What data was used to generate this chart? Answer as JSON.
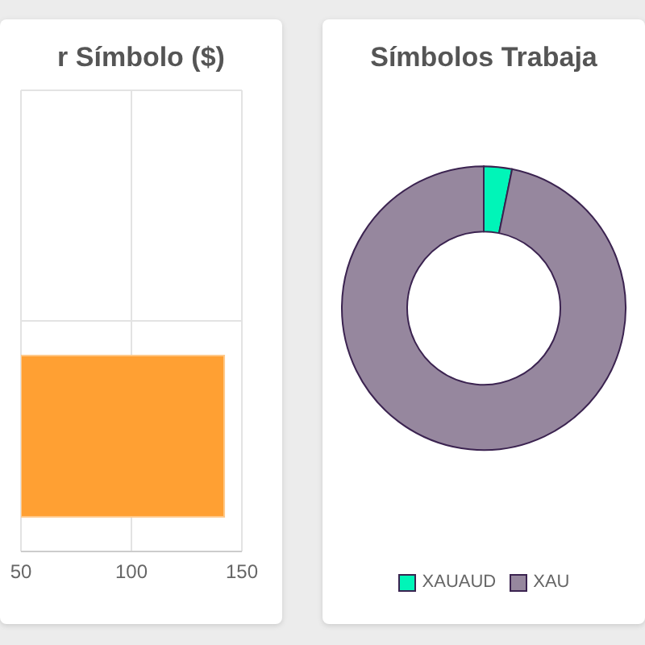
{
  "chart_data": [
    {
      "type": "bar",
      "orientation": "horizontal",
      "title": "r Símbolo ($)",
      "categories": [
        null,
        null
      ],
      "values": [
        null,
        142
      ],
      "color": "#ffa033",
      "xlim": [
        50,
        150
      ],
      "xticks": [
        50,
        100,
        150
      ],
      "grid": true,
      "tick_labels": "x"
    },
    {
      "type": "donut",
      "title": "Símbolos Trabaja",
      "categories": [
        "XAUAUD",
        "XAU"
      ],
      "values": [
        3.2,
        96.8
      ],
      "colors": [
        "#00f5b8",
        "#96879e"
      ],
      "legend": "bottom"
    }
  ]
}
